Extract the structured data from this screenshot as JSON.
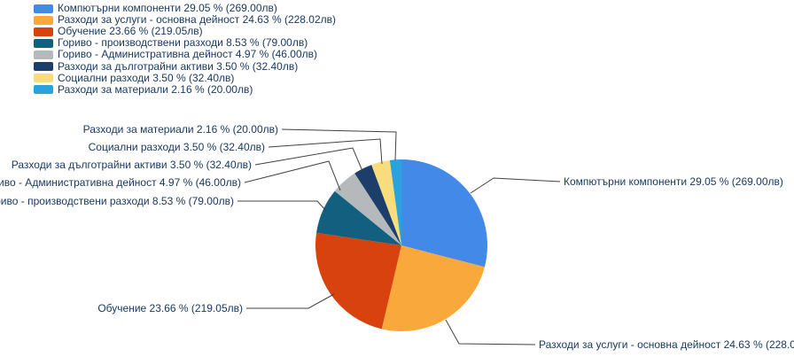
{
  "chart_data": {
    "type": "pie",
    "title": "",
    "unit_suffix": "лв",
    "legend_position": "top-left",
    "label_format": "{label} {percent} % ({amount}{unit})",
    "line_color": "#404040",
    "text_color": "#17375E",
    "slices": [
      {
        "label": "Компютърни компоненти",
        "percent": "29.05",
        "amount": "269.00",
        "value": 269.0,
        "color": "#4289E8"
      },
      {
        "label": "Разходи за услуги - основна дейност",
        "percent": "24.63",
        "amount": "228.02",
        "value": 228.02,
        "color": "#F9A93C"
      },
      {
        "label": "Обучение",
        "percent": "23.66",
        "amount": "219.05",
        "value": 219.05,
        "color": "#D8420E"
      },
      {
        "label": "Гориво - производствени разходи",
        "percent": "8.53",
        "amount": "79.00",
        "value": 79.0,
        "color": "#135F80"
      },
      {
        "label": "Гориво - Административна дейност",
        "percent": "4.97",
        "amount": "46.00",
        "value": 46.0,
        "color": "#B5B9BC"
      },
      {
        "label": "Разходи за дълготрайни активи",
        "percent": "3.50",
        "amount": "32.40",
        "value": 32.4,
        "color": "#1D3D6A"
      },
      {
        "label": "Социални разходи",
        "percent": "3.50",
        "amount": "32.40",
        "value": 32.4,
        "color": "#F9DC7C"
      },
      {
        "label": "Разходи за материали",
        "percent": "2.16",
        "amount": "20.00",
        "value": 20.0,
        "color": "#2AA2DB"
      }
    ]
  }
}
